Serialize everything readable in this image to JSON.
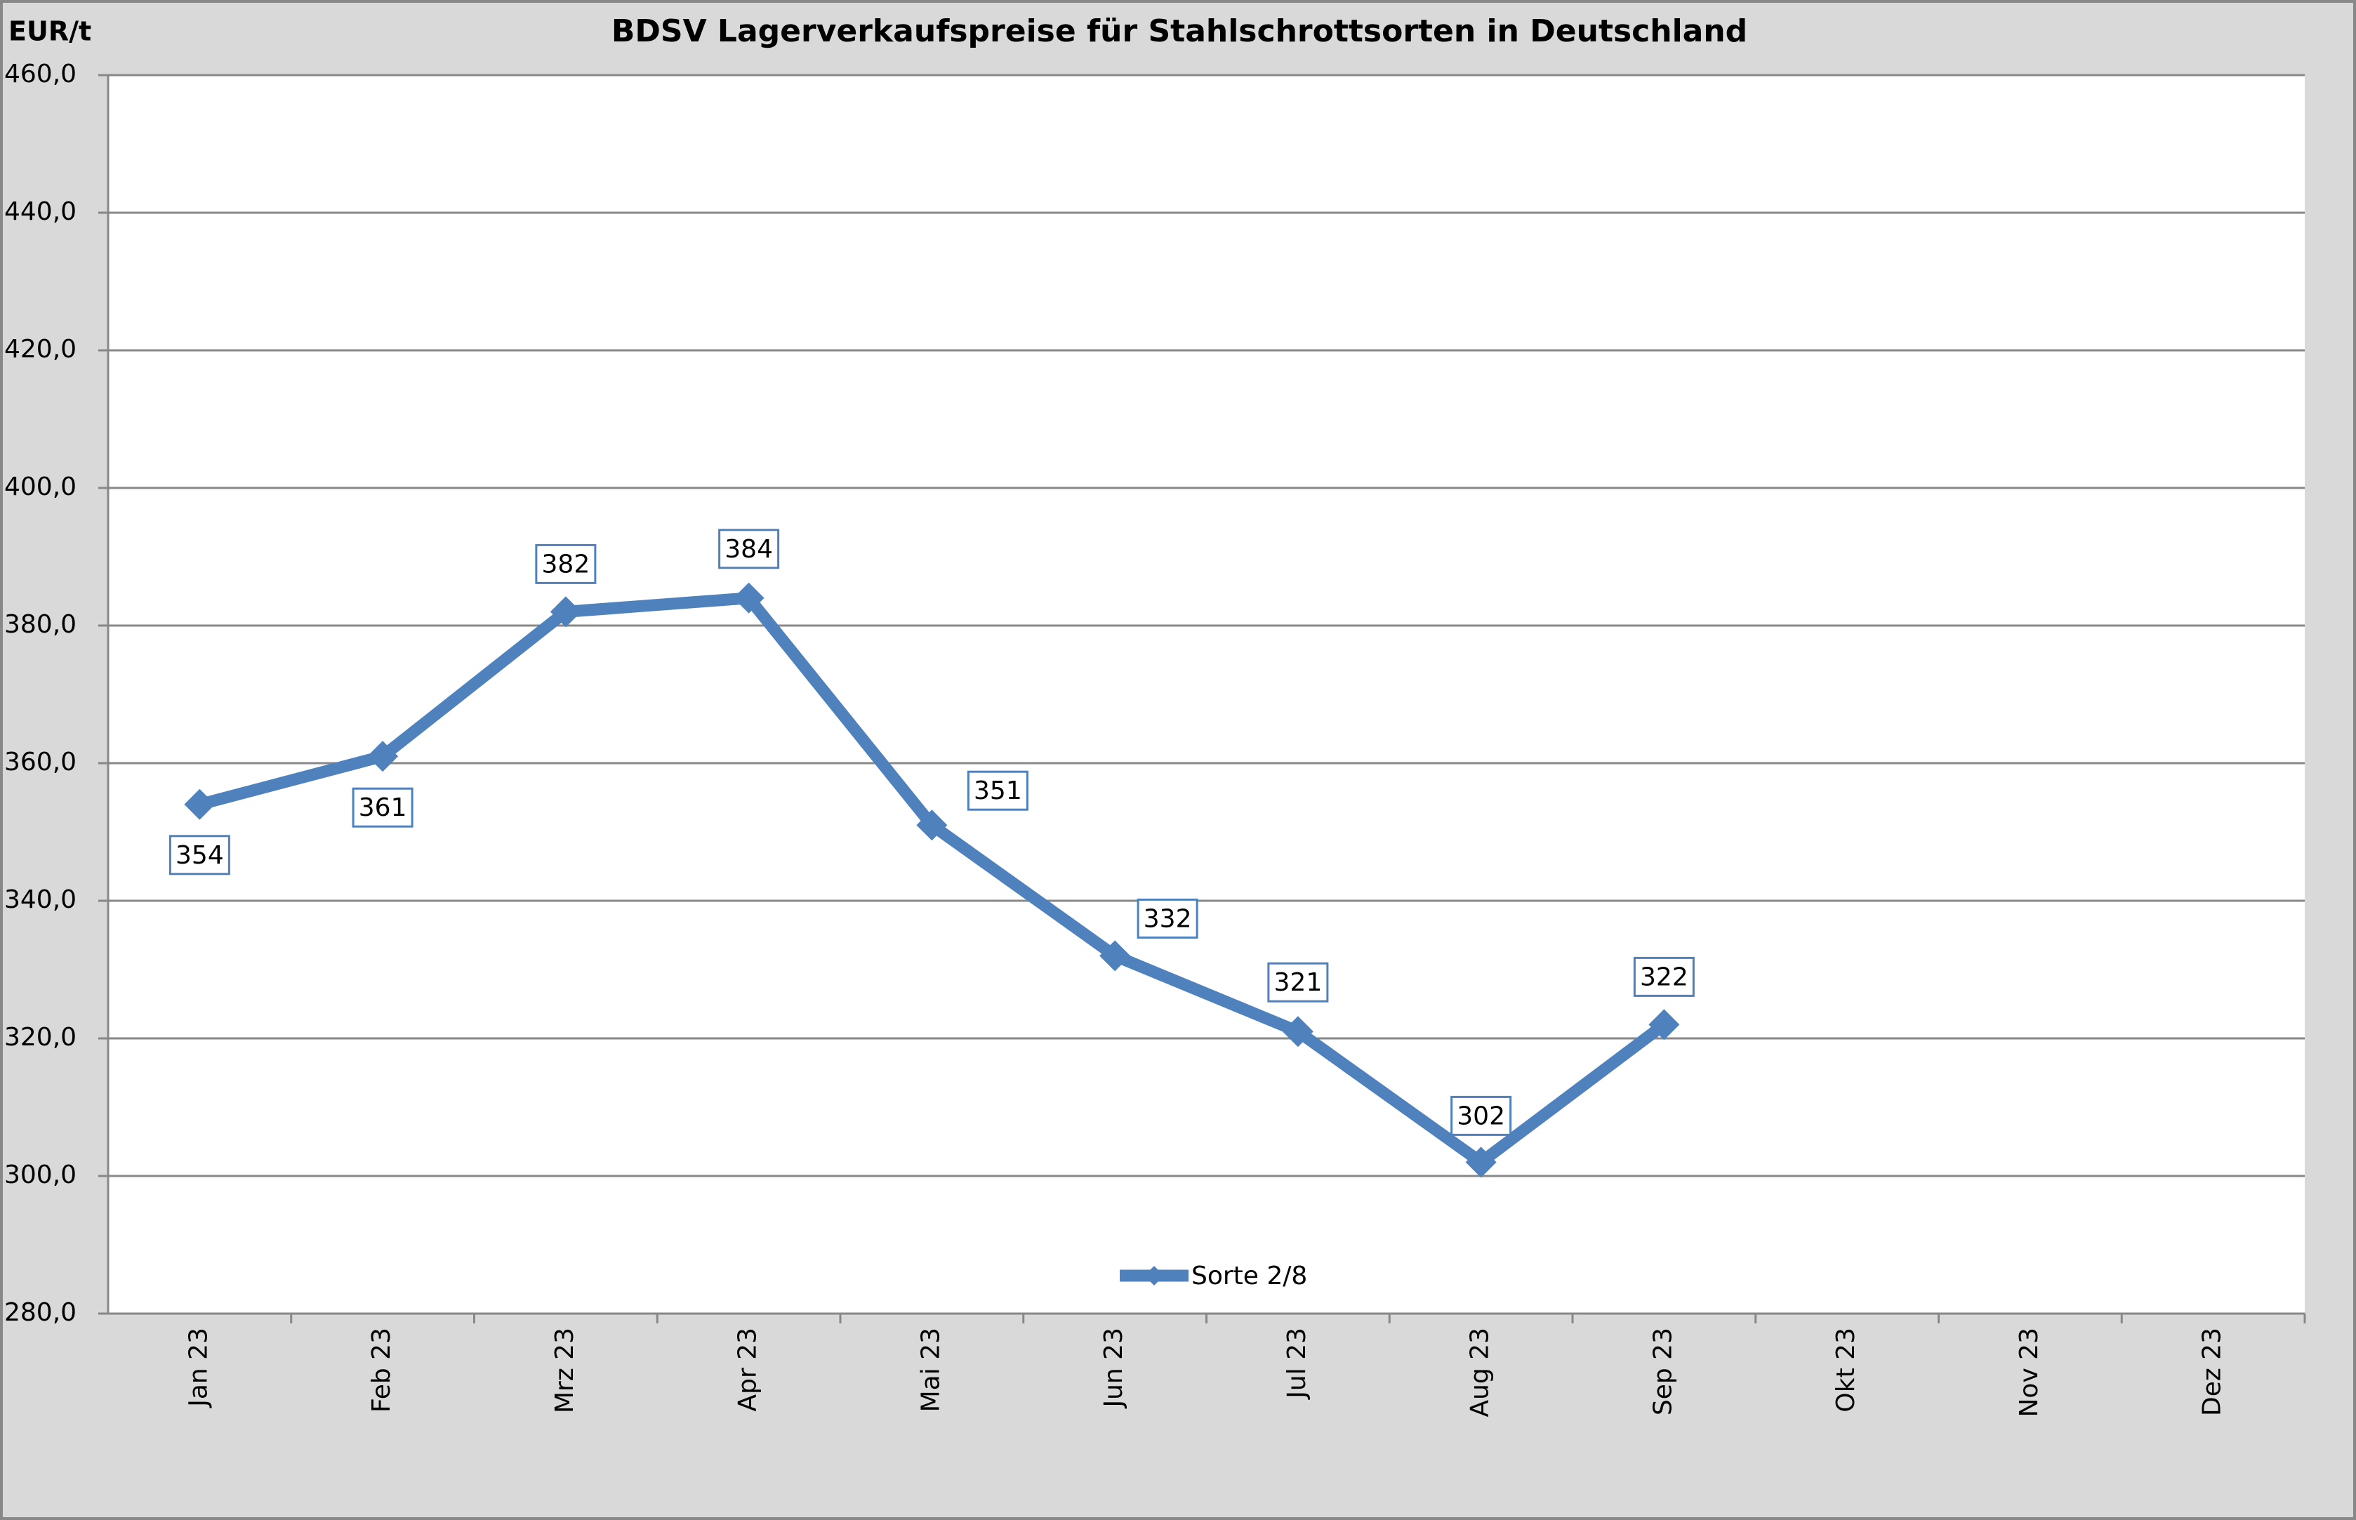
{
  "chart_data": {
    "type": "line",
    "title": "BDSV Lagerverkaufspreise für Stahlschrottsorten in Deutschland",
    "y_label": "EUR/t",
    "categories": [
      "Jan 23",
      "Feb 23",
      "Mrz 23",
      "Apr 23",
      "Mai 23",
      "Jun 23",
      "Jul 23",
      "Aug 23",
      "Sep 23",
      "Okt 23",
      "Nov 23",
      "Dez 23"
    ],
    "series": [
      {
        "name": "Sorte 2/8",
        "color": "#4f81bd",
        "values": [
          354,
          361,
          382,
          384,
          351,
          332,
          321,
          302,
          322,
          null,
          null,
          null
        ]
      }
    ],
    "ylim": [
      280,
      460
    ],
    "yticks": [
      {
        "value": 280,
        "label": "280,0"
      },
      {
        "value": 300,
        "label": "300,0"
      },
      {
        "value": 320,
        "label": "320,0"
      },
      {
        "value": 340,
        "label": "340,0"
      },
      {
        "value": 360,
        "label": "360,0"
      },
      {
        "value": 380,
        "label": "380,0"
      },
      {
        "value": 400,
        "label": "400,0"
      },
      {
        "value": 420,
        "label": "420,0"
      },
      {
        "value": 440,
        "label": "440,0"
      },
      {
        "value": 460,
        "label": "460,0"
      }
    ],
    "grid": true,
    "legend": "bottom"
  }
}
